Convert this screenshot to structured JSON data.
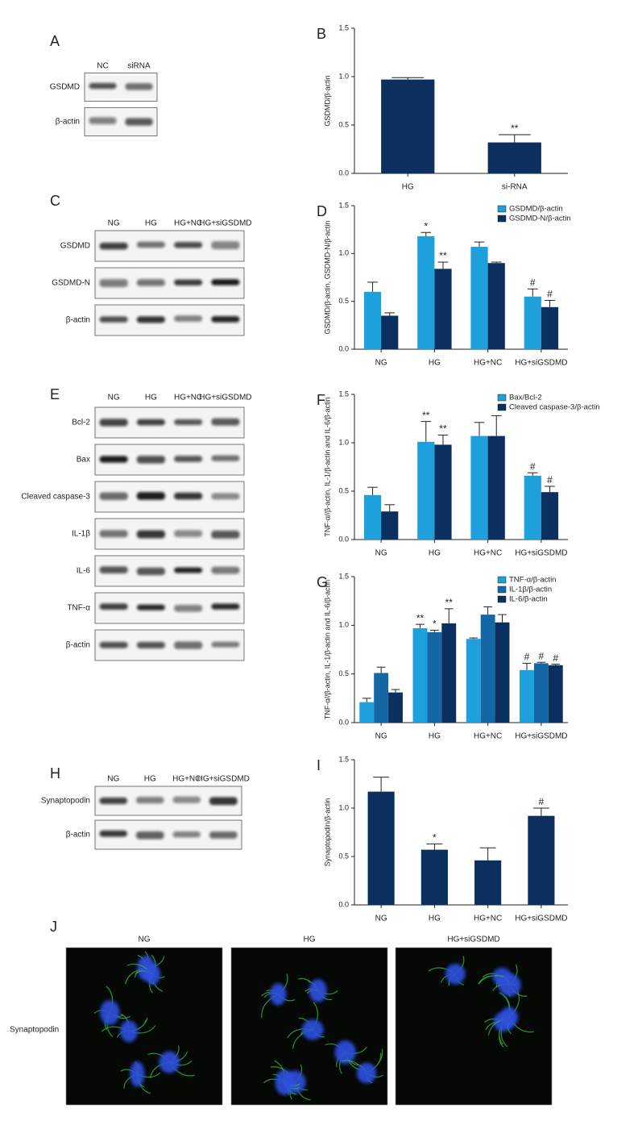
{
  "chart_data": [
    {
      "type": "bar",
      "panel": "B",
      "ylabel": "GSDMD/β-actin",
      "categories": [
        "HG",
        "si-RNA"
      ],
      "series": [
        {
          "color": "#0b2f5e",
          "values": [
            0.97,
            0.32
          ],
          "errors": [
            0.02,
            0.08
          ],
          "annotations": [
            null,
            "**"
          ]
        }
      ],
      "ylim": [
        0,
        1.5
      ],
      "yticks": [
        {
          "value": 0,
          "label": "0.0"
        },
        0.5,
        {
          "value": 1,
          "label": "1.0"
        },
        1.5
      ]
    },
    {
      "type": "bar",
      "panel": "D",
      "ylabel": "GSDMD/β-actin, GSDMD-N/β-actin",
      "categories": [
        "NG",
        "HG",
        "HG+NC",
        "HG+siGSDMD"
      ],
      "series": [
        {
          "name": "GSDMD/β-actin",
          "color": "#1ea0dc",
          "values": [
            0.6,
            1.18,
            1.07,
            0.55
          ],
          "errors": [
            0.1,
            0.04,
            0.05,
            0.08
          ],
          "annotations": [
            null,
            "*",
            null,
            "#"
          ]
        },
        {
          "name": "GSDMD-N/β-actin",
          "color": "#0b2f5e",
          "values": [
            0.35,
            0.84,
            0.9,
            0.44
          ],
          "errors": [
            0.03,
            0.07,
            0.01,
            0.07
          ],
          "annotations": [
            null,
            "**",
            null,
            "#"
          ]
        }
      ],
      "ylim": [
        0,
        1.5
      ],
      "yticks": [
        {
          "value": 0,
          "label": "0.0"
        },
        0.5,
        {
          "value": 1,
          "label": "1.0"
        },
        1.5
      ]
    },
    {
      "type": "bar",
      "panel": "F",
      "ylabel": "TNF-α//β-actin, IL-1/β-actin and IL-6/β-actin",
      "categories": [
        "NG",
        "HG",
        "HG+NC",
        "HG+siGSDMD"
      ],
      "series": [
        {
          "name": "Bax/Bcl-2",
          "color": "#1ea0dc",
          "values": [
            0.46,
            1.01,
            1.07,
            0.66
          ],
          "errors": [
            0.08,
            0.21,
            0.14,
            0.03
          ],
          "annotations": [
            null,
            "**",
            null,
            "#"
          ]
        },
        {
          "name": "Cleaved caspase-3/β-actin",
          "color": "#0b2f5e",
          "values": [
            0.29,
            0.98,
            1.07,
            0.49
          ],
          "errors": [
            0.07,
            0.1,
            0.21,
            0.06
          ],
          "annotations": [
            null,
            "**",
            null,
            "#"
          ]
        }
      ],
      "ylim": [
        0,
        1.5
      ],
      "yticks": [
        {
          "value": 0,
          "label": "0.0"
        },
        0.5,
        {
          "value": 1,
          "label": "1.0"
        },
        1.5
      ]
    },
    {
      "type": "bar",
      "panel": "G",
      "ylabel": "TNF-α//β-actin, IL-1/β-actin and IL-6/β-actin",
      "categories": [
        "NG",
        "HG",
        "HG+NC",
        "HG+siGSDMD"
      ],
      "series": [
        {
          "name": "TNF-α/β-actin",
          "color": "#1ea0dc",
          "values": [
            0.21,
            0.97,
            0.86,
            0.54
          ],
          "errors": [
            0.04,
            0.04,
            0.01,
            0.07
          ],
          "annotations": [
            null,
            "**",
            null,
            "#"
          ]
        },
        {
          "name": "IL-1β/β-actin",
          "color": "#1667a6",
          "values": [
            0.51,
            0.93,
            1.11,
            0.61
          ],
          "errors": [
            0.06,
            0.02,
            0.08,
            0.01
          ],
          "annotations": [
            null,
            "*",
            null,
            "#"
          ]
        },
        {
          "name": "IL-6/β-actin",
          "color": "#0b2f5e",
          "values": [
            0.31,
            1.02,
            1.03,
            0.59
          ],
          "errors": [
            0.03,
            0.15,
            0.08,
            0.01
          ],
          "annotations": [
            null,
            "**",
            null,
            "#"
          ]
        }
      ],
      "ylim": [
        0,
        1.5
      ],
      "yticks": [
        {
          "value": 0,
          "label": "0.0"
        },
        0.5,
        {
          "value": 1,
          "label": "1.0"
        },
        1.5
      ]
    },
    {
      "type": "bar",
      "panel": "I",
      "ylabel": "Synaptopodin/β-actin",
      "categories": [
        "NG",
        "HG",
        "HG+NC",
        "HG+siGSDMD"
      ],
      "series": [
        {
          "color": "#0b2f5e",
          "values": [
            1.17,
            0.57,
            0.46,
            0.92
          ],
          "errors": [
            0.15,
            0.06,
            0.13,
            0.08
          ],
          "annotations": [
            null,
            "*",
            null,
            "#"
          ]
        }
      ],
      "ylim": [
        0,
        1.5
      ],
      "yticks": [
        {
          "value": 0,
          "label": "0.0"
        },
        0.5,
        {
          "value": 1,
          "label": "1.0"
        },
        1.5
      ]
    }
  ],
  "blots": [
    {
      "panel": "A",
      "lanes": [
        "NC",
        "siRNA"
      ],
      "rows": [
        "GSDMD",
        "β-actin"
      ]
    },
    {
      "panel": "C",
      "lanes": [
        "NG",
        "HG",
        "HG+NC",
        "HG+siGSDMD"
      ],
      "rows": [
        "GSDMD",
        "GSDMD-N",
        "β-actin"
      ]
    },
    {
      "panel": "E",
      "lanes": [
        "NG",
        "HG",
        "HG+NC",
        "HG+siGSDMD"
      ],
      "rows": [
        "Bcl-2",
        "Bax",
        "Cleaved caspase-3",
        "IL-1β",
        "IL-6",
        "TNF-α",
        "β-actin"
      ]
    },
    {
      "panel": "H",
      "lanes": [
        "NG",
        "HG",
        "HG+NC",
        "HG+siGSDMD"
      ],
      "rows": [
        "Synaptopodin",
        "β-actin"
      ]
    }
  ],
  "images": {
    "panel": "J",
    "row_label": "Synaptopodin",
    "columns": [
      "NG",
      "HG",
      "HG+siGSDMD"
    ]
  }
}
